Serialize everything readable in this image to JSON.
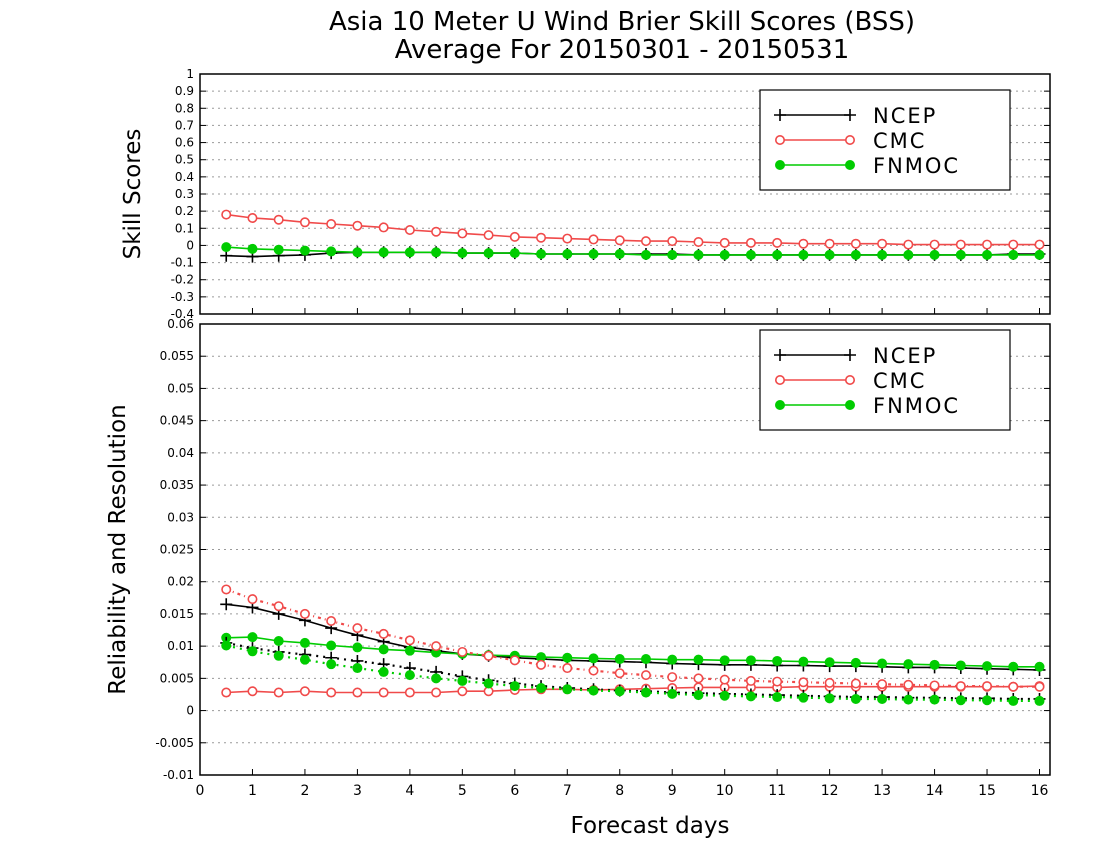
{
  "title_line1": "Asia 10 Meter U Wind Brier Skill Scores (BSS)",
  "title_line2": "Average For 20150301 - 20150531",
  "colors": {
    "NCEP": "#000000",
    "CMC": "#f04a4a",
    "FNMOC": "#00cc00"
  },
  "chart_data": [
    {
      "type": "line",
      "title": "Asia 10 Meter U Wind Brier Skill Scores (BSS) Average For 20150301 - 20150531",
      "xlabel": "",
      "ylabel": "Skill Scores",
      "xlim": [
        0,
        16.2
      ],
      "ylim": [
        -0.4,
        1
      ],
      "yticks": [
        -0.4,
        -0.3,
        -0.2,
        -0.1,
        0,
        0.1,
        0.2,
        0.3,
        0.4,
        0.5,
        0.6,
        0.7,
        0.8,
        0.9,
        1
      ],
      "ytick_labels": [
        "-0.4",
        "-0.3",
        "-0.2",
        "-0.1",
        "0",
        "0.1",
        "0.2",
        "0.3",
        "0.4",
        "0.5",
        "0.6",
        "0.7",
        "0.8",
        "0.9",
        "1"
      ],
      "grid": true,
      "legend_position": "top-right",
      "x": [
        0.5,
        1,
        1.5,
        2,
        2.5,
        3,
        3.5,
        4,
        4.5,
        5,
        5.5,
        6,
        6.5,
        7,
        7.5,
        8,
        8.5,
        9,
        9.5,
        10,
        10.5,
        11,
        11.5,
        12,
        12.5,
        13,
        13.5,
        14,
        14.5,
        15,
        15.5,
        16
      ],
      "series": [
        {
          "name": "NCEP",
          "marker": "plus",
          "style": "solid",
          "values": [
            -0.06,
            -0.065,
            -0.06,
            -0.055,
            -0.045,
            -0.04,
            -0.04,
            -0.04,
            -0.04,
            -0.045,
            -0.045,
            -0.045,
            -0.05,
            -0.05,
            -0.05,
            -0.05,
            -0.05,
            -0.05,
            -0.055,
            -0.055,
            -0.055,
            -0.055,
            -0.055,
            -0.055,
            -0.055,
            -0.055,
            -0.055,
            -0.055,
            -0.055,
            -0.055,
            -0.05,
            -0.05
          ]
        },
        {
          "name": "CMC",
          "marker": "open-circle",
          "style": "solid",
          "values": [
            0.18,
            0.16,
            0.15,
            0.135,
            0.125,
            0.115,
            0.105,
            0.09,
            0.08,
            0.07,
            0.06,
            0.05,
            0.045,
            0.04,
            0.035,
            0.03,
            0.025,
            0.025,
            0.02,
            0.015,
            0.015,
            0.015,
            0.01,
            0.01,
            0.01,
            0.01,
            0.005,
            0.005,
            0.005,
            0.005,
            0.005,
            0.005
          ]
        },
        {
          "name": "FNMOC",
          "marker": "filled-circle",
          "style": "solid",
          "values": [
            -0.01,
            -0.02,
            -0.025,
            -0.03,
            -0.035,
            -0.04,
            -0.04,
            -0.04,
            -0.04,
            -0.045,
            -0.045,
            -0.045,
            -0.05,
            -0.05,
            -0.05,
            -0.05,
            -0.055,
            -0.055,
            -0.055,
            -0.055,
            -0.055,
            -0.055,
            -0.055,
            -0.055,
            -0.055,
            -0.055,
            -0.055,
            -0.055,
            -0.055,
            -0.055,
            -0.055,
            -0.055
          ]
        }
      ]
    },
    {
      "type": "line",
      "title": "",
      "xlabel": "Forecast days",
      "ylabel": "Reliability and Resolution",
      "xlim": [
        0,
        16.2
      ],
      "ylim": [
        -0.01,
        0.06
      ],
      "xticks": [
        0,
        1,
        2,
        3,
        4,
        5,
        6,
        7,
        8,
        9,
        10,
        11,
        12,
        13,
        14,
        15,
        16
      ],
      "xtick_labels": [
        "0",
        "1",
        "2",
        "3",
        "4",
        "5",
        "6",
        "7",
        "8",
        "9",
        "10",
        "11",
        "12",
        "13",
        "14",
        "15",
        "16"
      ],
      "yticks": [
        -0.01,
        -0.005,
        0,
        0.005,
        0.01,
        0.015,
        0.02,
        0.025,
        0.03,
        0.035,
        0.04,
        0.045,
        0.05,
        0.055,
        0.06
      ],
      "ytick_labels": [
        "-0.01",
        "-0.005",
        "0",
        "0.005",
        "0.01",
        "0.015",
        "0.02",
        "0.025",
        "0.03",
        "0.035",
        "0.04",
        "0.045",
        "0.05",
        "0.055",
        "0.06"
      ],
      "grid": true,
      "legend_position": "top-right",
      "x": [
        0.5,
        1,
        1.5,
        2,
        2.5,
        3,
        3.5,
        4,
        4.5,
        5,
        5.5,
        6,
        6.5,
        7,
        7.5,
        8,
        8.5,
        9,
        9.5,
        10,
        10.5,
        11,
        11.5,
        12,
        12.5,
        13,
        13.5,
        14,
        14.5,
        15,
        15.5,
        16
      ],
      "series": [
        {
          "name": "NCEP",
          "marker": "plus",
          "style": "solid",
          "values": [
            0.0165,
            0.016,
            0.015,
            0.014,
            0.0128,
            0.0117,
            0.0107,
            0.0098,
            0.0093,
            0.0088,
            0.0085,
            0.0082,
            0.008,
            0.0078,
            0.0077,
            0.0076,
            0.0075,
            0.0073,
            0.0072,
            0.0071,
            0.0071,
            0.007,
            0.007,
            0.0069,
            0.0069,
            0.0068,
            0.0067,
            0.0067,
            0.0066,
            0.0065,
            0.0064,
            0.0063
          ]
        },
        {
          "name": "CMC",
          "marker": "open-circle",
          "style": "solid",
          "values": [
            0.0028,
            0.003,
            0.0028,
            0.003,
            0.0028,
            0.0028,
            0.0028,
            0.0028,
            0.0028,
            0.003,
            0.003,
            0.0032,
            0.0033,
            0.0033,
            0.0032,
            0.0033,
            0.0034,
            0.0035,
            0.0036,
            0.0036,
            0.0036,
            0.0036,
            0.0037,
            0.0037,
            0.0037,
            0.0037,
            0.0037,
            0.0037,
            0.0037,
            0.0037,
            0.0037,
            0.0038
          ]
        },
        {
          "name": "FNMOC",
          "marker": "filled-circle",
          "style": "solid",
          "values": [
            0.0113,
            0.0114,
            0.0108,
            0.0105,
            0.0101,
            0.0098,
            0.0095,
            0.0093,
            0.009,
            0.0088,
            0.0086,
            0.0085,
            0.0083,
            0.0082,
            0.0081,
            0.008,
            0.008,
            0.0079,
            0.0079,
            0.0078,
            0.0078,
            0.0077,
            0.0076,
            0.0075,
            0.0074,
            0.0073,
            0.0072,
            0.0071,
            0.007,
            0.0069,
            0.0068,
            0.0068
          ]
        },
        {
          "name": "NCEP",
          "marker": "plus",
          "style": "dotted",
          "legend": false,
          "values": [
            0.0105,
            0.0097,
            0.0091,
            0.0087,
            0.0082,
            0.0077,
            0.0072,
            0.0066,
            0.006,
            0.0053,
            0.0047,
            0.0042,
            0.0038,
            0.0035,
            0.0033,
            0.0031,
            0.003,
            0.0028,
            0.0027,
            0.0026,
            0.0025,
            0.0024,
            0.0023,
            0.0022,
            0.0021,
            0.0021,
            0.002,
            0.002,
            0.0019,
            0.0019,
            0.0018,
            0.0018
          ]
        },
        {
          "name": "CMC",
          "marker": "open-circle",
          "style": "dotted",
          "legend": false,
          "values": [
            0.0188,
            0.0173,
            0.0162,
            0.015,
            0.0139,
            0.0128,
            0.0119,
            0.0109,
            0.01,
            0.0091,
            0.0085,
            0.0078,
            0.0071,
            0.0066,
            0.0062,
            0.0058,
            0.0055,
            0.0052,
            0.005,
            0.0048,
            0.0046,
            0.0045,
            0.0044,
            0.0043,
            0.0042,
            0.0041,
            0.004,
            0.0039,
            0.0038,
            0.0038,
            0.0037,
            0.0037
          ]
        },
        {
          "name": "FNMOC",
          "marker": "filled-circle",
          "style": "dotted",
          "legend": false,
          "values": [
            0.0101,
            0.0092,
            0.0085,
            0.0079,
            0.0072,
            0.0066,
            0.006,
            0.0055,
            0.005,
            0.0046,
            0.0042,
            0.0038,
            0.0035,
            0.0033,
            0.0031,
            0.003,
            0.0028,
            0.0026,
            0.0024,
            0.0023,
            0.0022,
            0.0021,
            0.002,
            0.0019,
            0.0018,
            0.0018,
            0.0017,
            0.0017,
            0.0016,
            0.0016,
            0.0015,
            0.0015
          ]
        }
      ]
    }
  ]
}
